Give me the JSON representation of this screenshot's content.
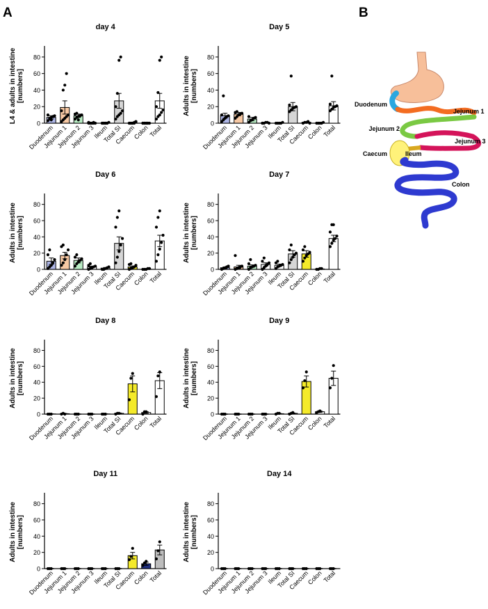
{
  "panel_labels": {
    "a": "A",
    "b": "B"
  },
  "colors": {
    "Duodenum": "#aeb6e6",
    "Jejunum 1": "#f7c9a4",
    "Jejunum 2": "#b9ecc4",
    "Jejunum 3": "#ffffff",
    "Ileum": "#ffffff",
    "Total SI": "#d6d6d6",
    "Caecum": "#f4ea2a",
    "Colon": "#ffffff",
    "Total": "#ffffff",
    "caecum_day8": "#f4ea2a",
    "colon_day11": "#1f2f80",
    "total_day11": "#bdbdbd"
  },
  "chart_data": [
    {
      "type": "bar",
      "title": "day 4",
      "ylabel": "L4 & adults in intestine [numbers]",
      "ylim": [
        0,
        90
      ],
      "yticks": [
        0,
        20,
        40,
        60,
        80
      ],
      "categories": [
        "Duodenum",
        "Jejunum 1",
        "Jejunum 2",
        "Jejunum 3",
        "Ileum",
        "Total SI",
        "Caecum",
        "Colon",
        "Total"
      ],
      "values": [
        7,
        19,
        9,
        0.5,
        0.3,
        27,
        0.5,
        0.2,
        27
      ],
      "errors": [
        2,
        8,
        2,
        0.3,
        0.2,
        9,
        0.3,
        0.1,
        9
      ],
      "points": [
        [
          3,
          5,
          7,
          8,
          9,
          10,
          6,
          4,
          8
        ],
        [
          2,
          4,
          6,
          8,
          10,
          15,
          40,
          46,
          60
        ],
        [
          5,
          7,
          8,
          9,
          10,
          11,
          12,
          4,
          9
        ],
        [
          0,
          0,
          0,
          1,
          0,
          1,
          0,
          0,
          0
        ],
        [
          0,
          0,
          0,
          0,
          1,
          0,
          0,
          0,
          0
        ],
        [
          5,
          8,
          10,
          12,
          15,
          20,
          36,
          76,
          80
        ],
        [
          0,
          0,
          0,
          1,
          2,
          0,
          0,
          0,
          0
        ],
        [
          0,
          0,
          0,
          0,
          0,
          0,
          0,
          0,
          0
        ],
        [
          5,
          8,
          10,
          13,
          16,
          20,
          37,
          76,
          80
        ]
      ]
    },
    {
      "type": "bar",
      "title": "Day 5",
      "ylabel": "Adults in intestine [numbers]",
      "ylim": [
        0,
        90
      ],
      "yticks": [
        0,
        20,
        40,
        60,
        80
      ],
      "categories": [
        "Duodenum",
        "Jejunum 1",
        "Jejunum 2",
        "Jejunum 3",
        "Ileum",
        "Total SI",
        "Caecum",
        "Colon",
        "Total"
      ],
      "values": [
        9,
        11,
        5,
        0.5,
        0.3,
        20,
        1,
        0.3,
        21
      ],
      "errors": [
        3,
        2,
        2,
        0.3,
        0.2,
        5,
        0.5,
        0.2,
        5
      ],
      "points": [
        [
          2,
          4,
          6,
          8,
          9,
          10,
          33
        ],
        [
          6,
          8,
          10,
          11,
          12,
          13,
          14
        ],
        [
          1,
          3,
          4,
          6,
          7,
          8
        ],
        [
          0,
          0,
          1,
          1,
          0,
          0
        ],
        [
          0,
          0,
          0,
          0,
          1
        ],
        [
          14,
          16,
          18,
          19,
          20,
          22,
          57
        ],
        [
          0,
          1,
          1,
          2,
          0
        ],
        [
          0,
          0,
          0,
          0,
          1
        ],
        [
          15,
          17,
          19,
          20,
          21,
          23,
          57
        ]
      ]
    },
    {
      "type": "bar",
      "title": "Day 6",
      "ylabel": "Adults in intestine [numbers]",
      "ylim": [
        0,
        90
      ],
      "yticks": [
        0,
        20,
        40,
        60,
        80
      ],
      "categories": [
        "Duodenum",
        "Jejunum 1",
        "Jejunum 2",
        "Jejunum 3",
        "Ileum",
        "Total SI",
        "Caecum",
        "Colon",
        "Total"
      ],
      "values": [
        10,
        17,
        11,
        3,
        1.5,
        32,
        3,
        0.5,
        35
      ],
      "errors": [
        4,
        4,
        3,
        1,
        0.8,
        8,
        1.2,
        0.3,
        7
      ],
      "points": [
        [
          1,
          3,
          5,
          8,
          12,
          18,
          24
        ],
        [
          5,
          8,
          12,
          18,
          24,
          28,
          30
        ],
        [
          4,
          7,
          9,
          11,
          13,
          15,
          18
        ],
        [
          0,
          1,
          2,
          3,
          4,
          5,
          7
        ],
        [
          0,
          0,
          1,
          2,
          3
        ],
        [
          8,
          15,
          22,
          30,
          38,
          52,
          64,
          72
        ],
        [
          0,
          1,
          2,
          3,
          5,
          6,
          7
        ],
        [
          0,
          0,
          0,
          1,
          1
        ],
        [
          10,
          18,
          25,
          33,
          42,
          52,
          64,
          72
        ]
      ]
    },
    {
      "type": "bar",
      "title": "Day 7",
      "ylabel": "Adults in intestine [numbers]",
      "ylim": [
        0,
        90
      ],
      "yticks": [
        0,
        20,
        40,
        60,
        80
      ],
      "categories": [
        "Duodenum",
        "Jejunum 1",
        "Jejunum 2",
        "Jejunum 3",
        "Ileum",
        "Total SI",
        "Caecum",
        "Colon",
        "Total"
      ],
      "values": [
        2,
        3,
        4,
        6,
        5,
        19,
        19,
        0.5,
        38
      ],
      "errors": [
        1,
        2,
        1.5,
        2,
        1.5,
        4,
        4,
        0.3,
        4
      ],
      "points": [
        [
          0,
          1,
          2,
          3,
          4
        ],
        [
          0,
          1,
          2,
          3,
          4,
          17
        ],
        [
          0,
          2,
          3,
          4,
          5,
          7,
          12
        ],
        [
          0,
          2,
          4,
          6,
          8,
          10,
          14
        ],
        [
          1,
          3,
          4,
          5,
          6,
          8,
          10
        ],
        [
          8,
          12,
          15,
          18,
          20,
          24,
          30
        ],
        [
          10,
          14,
          17,
          19,
          21,
          24,
          28
        ],
        [
          0,
          0,
          1,
          1
        ],
        [
          28,
          32,
          36,
          38,
          41,
          46,
          55,
          55
        ]
      ]
    },
    {
      "type": "bar",
      "title": "Day 8",
      "ylabel": "Adults in intestine [numbers]",
      "ylim": [
        0,
        90
      ],
      "yticks": [
        0,
        20,
        40,
        60,
        80
      ],
      "categories": [
        "Duodenum",
        "Jejunum 1",
        "Jejunum 2",
        "Jejunum 3",
        "Ileum",
        "Total SI",
        "Caecum",
        "Colon",
        "Total"
      ],
      "values": [
        0.2,
        0.5,
        0,
        0,
        0.2,
        1,
        38,
        2,
        42
      ],
      "errors": [
        0.2,
        0.3,
        0,
        0,
        0.2,
        0.5,
        10,
        1,
        10
      ],
      "points": [
        [
          0,
          0,
          0
        ],
        [
          0,
          1,
          0
        ],
        [
          0,
          0,
          0
        ],
        [
          0,
          0,
          0
        ],
        [
          0,
          0,
          0
        ],
        [
          0,
          1,
          1
        ],
        [
          18,
          45,
          51
        ],
        [
          0,
          3,
          3
        ],
        [
          22,
          48,
          53
        ]
      ]
    },
    {
      "type": "bar",
      "title": "Day 9",
      "ylabel": "Adults in intestine [numbers]",
      "ylim": [
        0,
        90
      ],
      "yticks": [
        0,
        20,
        40,
        60,
        80
      ],
      "categories": [
        "Duodenum",
        "Jejunum 1",
        "Jejunum 2",
        "Jejunum 3",
        "Ileum",
        "Total SI",
        "Caecum",
        "Colon",
        "Total"
      ],
      "values": [
        0,
        0,
        0,
        0,
        0.5,
        1,
        41,
        3,
        45
      ],
      "errors": [
        0,
        0,
        0,
        0,
        0.3,
        0.5,
        7,
        1,
        9
      ],
      "points": [
        [
          0,
          0,
          0
        ],
        [
          0,
          0,
          0
        ],
        [
          0,
          0,
          0
        ],
        [
          0,
          0,
          0
        ],
        [
          0,
          1,
          1
        ],
        [
          0,
          1,
          2
        ],
        [
          33,
          42,
          53
        ],
        [
          2,
          3,
          4
        ],
        [
          33,
          45,
          61
        ]
      ]
    },
    {
      "type": "bar",
      "title": "Day 11",
      "ylabel": "Adults in intestine [numbers]",
      "ylim": [
        0,
        90
      ],
      "yticks": [
        0,
        20,
        40,
        60,
        80
      ],
      "categories": [
        "Duodenum",
        "Jejunum 1",
        "Jejunum 2",
        "Jejunum 3",
        "Ileum",
        "Total SI",
        "Caecum",
        "Colon",
        "Total"
      ],
      "values": [
        0,
        0,
        0,
        0,
        0,
        0,
        16,
        6,
        23
      ],
      "errors": [
        0,
        0,
        0,
        0,
        0,
        0,
        4,
        2,
        6
      ],
      "points": [
        [
          0,
          0,
          0
        ],
        [
          0,
          0,
          0
        ],
        [
          0,
          0,
          0
        ],
        [
          0,
          0,
          0
        ],
        [
          0,
          0,
          0
        ],
        [
          0,
          0,
          0
        ],
        [
          11,
          15,
          25
        ],
        [
          4,
          7,
          9
        ],
        [
          12,
          22,
          33
        ]
      ]
    },
    {
      "type": "bar",
      "title": "Day 14",
      "ylabel": "Adults in intestine [numbers]",
      "ylim": [
        0,
        90
      ],
      "yticks": [
        0,
        20,
        40,
        60,
        80
      ],
      "categories": [
        "Duodenum",
        "Jejunum 1",
        "Jejunum 2",
        "Jejunum 3",
        "Ileum",
        "Total SI",
        "Caecum",
        "Colon",
        "Total"
      ],
      "values": [
        0,
        0,
        0,
        0,
        0,
        0,
        0,
        0,
        0
      ],
      "errors": [
        0,
        0,
        0,
        0,
        0,
        0,
        0,
        0,
        0
      ],
      "points": [
        [
          0,
          0,
          0
        ],
        [
          0,
          0,
          0
        ],
        [
          0,
          0,
          0
        ],
        [
          0,
          0,
          0
        ],
        [
          0,
          0,
          0
        ],
        [
          0,
          0,
          0
        ],
        [
          0,
          0,
          0
        ],
        [
          0,
          0,
          0
        ],
        [
          0,
          0,
          0
        ]
      ]
    }
  ],
  "diagram": {
    "labels": {
      "duodenum": "Duodenum",
      "jejunum1": "Jejunum 1",
      "jejunum2": "Jejunum 2",
      "jejunum3": "Jejunum 3",
      "caecum": "Caecum",
      "ileum": "Ileum",
      "colon": "Colon"
    },
    "colors": {
      "stomach": "#f7bf9a",
      "duodenum": "#2aa7e0",
      "jejunum1": "#f36c21",
      "jejunum2": "#7ac943",
      "jejunum3": "#d4145a",
      "ileum": "#d9a81f",
      "caecum": "#fff27a",
      "colon": "#2e3ad0"
    }
  }
}
